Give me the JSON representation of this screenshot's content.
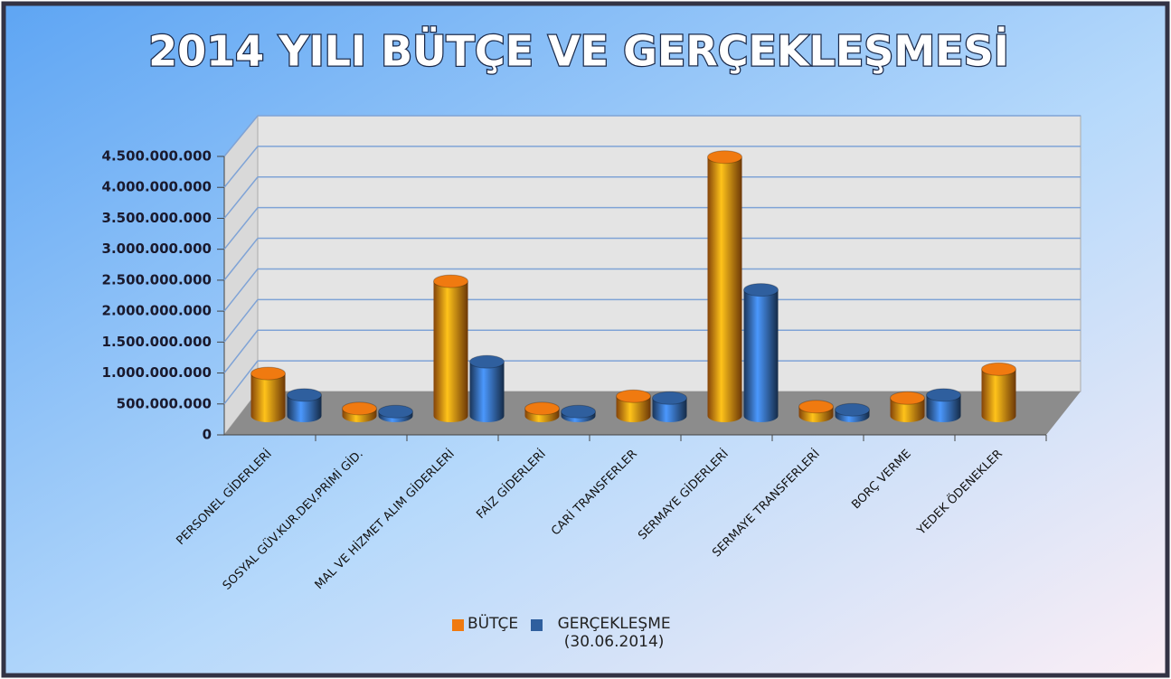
{
  "chart_data": {
    "type": "bar3d",
    "title": "2014 YILI BÜTÇE  VE GERÇEKLEŞMESİ",
    "categories": [
      "PERSONEL GİDERLERİ",
      "SOSYAL GÜV.KUR.DEV.PRİMİ GİD.",
      "MAL VE HİZMET ALIM GİDERLERİ",
      "FAİZ GİDERLERİ",
      "CARİ TRANSFERLER",
      "SERMAYE GİDERLERİ",
      "SERMAYE TRANSFERLERİ",
      "BORÇ VERME",
      "YEDEK ÖDENEKLER"
    ],
    "series": [
      {
        "name": "BÜTÇE",
        "color": "#f07a10",
        "values": [
          690000000,
          120000000,
          2190000000,
          120000000,
          320000000,
          4210000000,
          150000000,
          290000000,
          760000000
        ]
      },
      {
        "name": "GERÇEKLEŞME (30.06.2014)",
        "color": "#2f5f9e",
        "values": [
          340000000,
          70000000,
          880000000,
          70000000,
          290000000,
          2050000000,
          100000000,
          340000000,
          null
        ]
      }
    ],
    "ylim": [
      0,
      4500000000
    ],
    "yticks": [
      0,
      {
        "value": 500000000,
        "label": "500.000.000"
      },
      {
        "value": 1000000000,
        "label": "1.000.000.000"
      },
      {
        "value": 1500000000,
        "label": "1.500.000.000"
      },
      {
        "value": 2000000000,
        "label": "2.000.000.000"
      },
      {
        "value": 2500000000,
        "label": "2.500.000.000"
      },
      {
        "value": 3000000000,
        "label": "3.000.000.000"
      },
      {
        "value": 3500000000,
        "label": "3.500.000.000"
      },
      {
        "value": 4000000000,
        "label": "4.000.000.000"
      },
      {
        "value": 4500000000,
        "label": "4.500.000.000"
      }
    ],
    "grid": true,
    "legend": "bottom"
  }
}
